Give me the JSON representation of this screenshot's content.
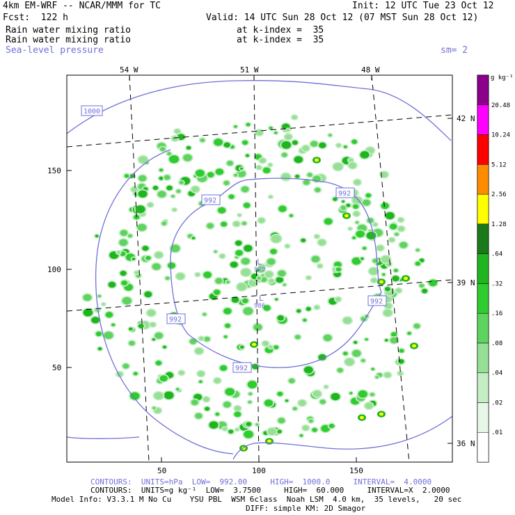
{
  "header": {
    "model_title": "4km EM-WRF -- NCAR/MMM for TC",
    "init": "Init: 12 UTC Tue 23 Oct 12",
    "forecast": "Fcst:  122 h",
    "valid": "Valid: 14 UTC Sun 28 Oct 12 (07 MST Sun 28 Oct 12)",
    "field1": "Rain water mixing ratio",
    "field1_level": "at k-index =  35",
    "field2": "Rain water mixing ratio",
    "field2_level": "at k-index =  35",
    "overlay": "Sea-level pressure",
    "smoothing": "sm= 2"
  },
  "map": {
    "lon_labels": [
      "54 W",
      "51 W",
      "48 W"
    ],
    "lat_labels": [
      "42 N",
      "39 N",
      "36 N"
    ],
    "y_ticks": [
      "150",
      "100",
      "50"
    ],
    "x_ticks": [
      "50",
      "100",
      "150"
    ],
    "isobar_labels": [
      "1000",
      "992",
      "992",
      "992",
      "992",
      "992"
    ],
    "low_marks": [
      "L",
      "L"
    ],
    "low_values": [
      "989",
      "986"
    ]
  },
  "legend": {
    "unit": "g kg⁻¹",
    "levels": [
      "20.48",
      "10.24",
      "5.12",
      "2.56",
      "1.28",
      ".64",
      ".32",
      ".16",
      ".08",
      ".04",
      ".02",
      ".01"
    ],
    "colors": [
      "#ffffff",
      "#e7f7e7",
      "#c4edc4",
      "#96e096",
      "#5fd35f",
      "#2ecc2e",
      "#1fb51f",
      "#1a7a1a",
      "#ffff00",
      "#ff8c00",
      "#ff0000",
      "#ff00ff",
      "#8b008b"
    ]
  },
  "footer": {
    "contours1": "CONTOURS:  UNITS=hPa  LOW=  992.00     HIGH=  1000.0     INTERVAL=  4.0000",
    "contours2": "CONTOURS:  UNITS=g kg⁻¹  LOW=  3.7500     HIGH=  60.000     INTERVAL=X  2.0000",
    "model_info": "Model Info: V3.3.1 M No Cu    YSU PBL  WSM 6class  Noah LSM  4.0 km,  35 levels,   20 sec",
    "diffusion": "DIFF: simple KM: 2D Smagor"
  },
  "colors": {
    "isobar": "#6f6fd8",
    "grid": "#000000"
  }
}
